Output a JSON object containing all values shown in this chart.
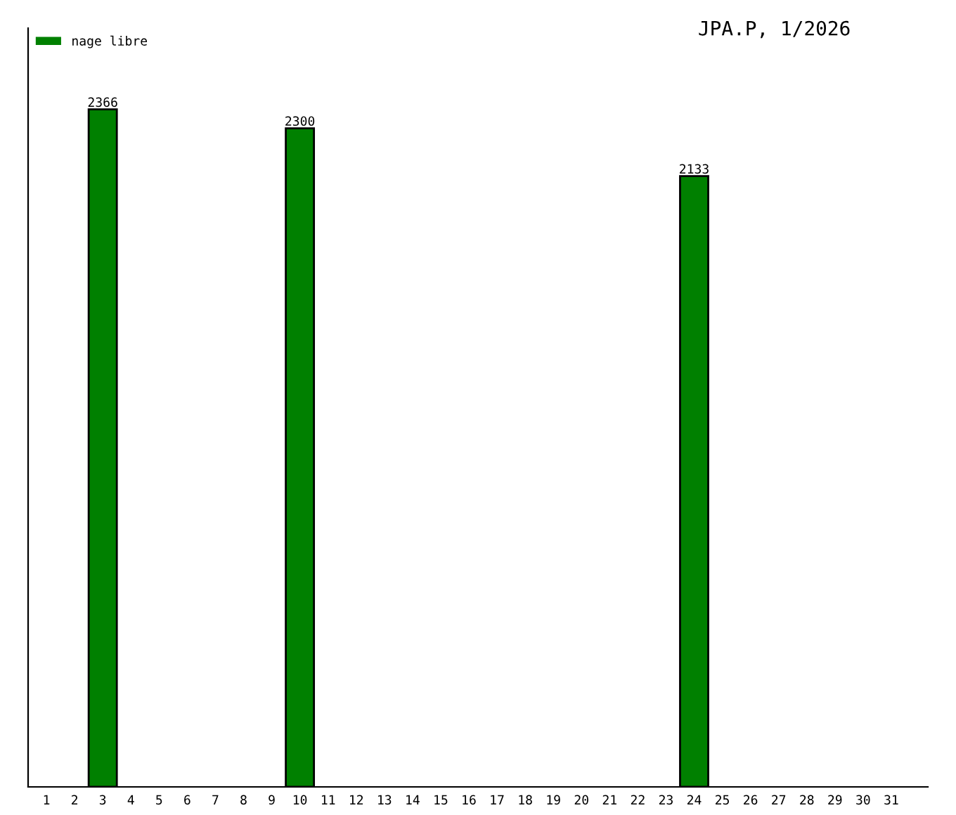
{
  "chart_data": {
    "type": "bar",
    "title": "JPA.P, 1/2026",
    "categories": [
      "1",
      "2",
      "3",
      "4",
      "5",
      "6",
      "7",
      "8",
      "9",
      "10",
      "11",
      "12",
      "13",
      "14",
      "15",
      "16",
      "17",
      "18",
      "19",
      "20",
      "21",
      "22",
      "23",
      "24",
      "25",
      "26",
      "27",
      "28",
      "29",
      "30",
      "31"
    ],
    "series": [
      {
        "name": "nage libre",
        "color": "#008000",
        "values": [
          null,
          null,
          2366,
          null,
          null,
          null,
          null,
          null,
          null,
          2300,
          null,
          null,
          null,
          null,
          null,
          null,
          null,
          null,
          null,
          null,
          null,
          null,
          null,
          2133,
          null,
          null,
          null,
          null,
          null,
          null,
          null
        ]
      }
    ],
    "data_labels": true,
    "legend": "top left",
    "grid": false
  }
}
